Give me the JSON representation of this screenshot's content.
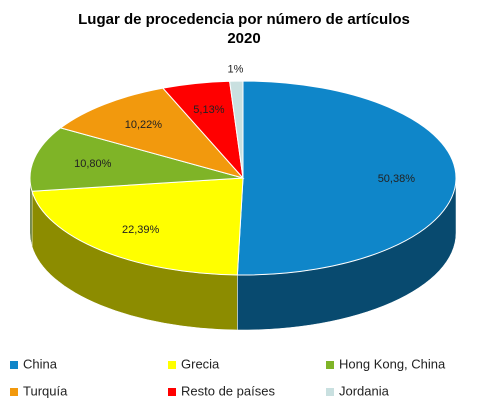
{
  "chart_data": {
    "type": "pie3d",
    "title": "Lugar de procedencia por número de artículos",
    "subtitle": "2020",
    "categories": [
      "China",
      "Grecia",
      "Hong Kong, China",
      "Turquía",
      "Resto de países",
      "Jordania"
    ],
    "values": [
      50.38,
      22.39,
      10.8,
      10.22,
      5.13,
      1
    ],
    "value_labels": [
      "50,38%",
      "22,39%",
      "10,80%",
      "10,22%",
      "5,13%",
      "1%"
    ],
    "colors": [
      "#0f86c9",
      "#ffff00",
      "#7fb427",
      "#f2990d",
      "#ff0000",
      "#c9e0e0"
    ],
    "legend": "bottom"
  }
}
